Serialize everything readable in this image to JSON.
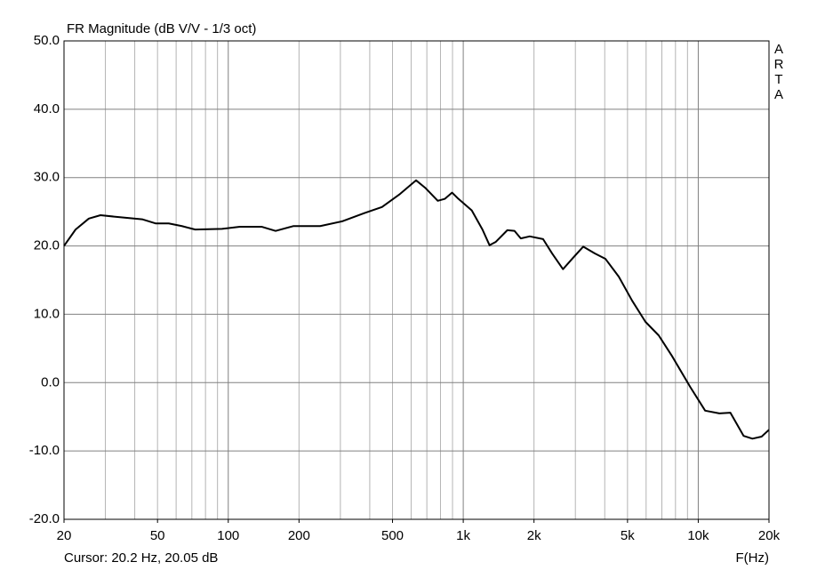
{
  "chart_data": {
    "type": "line",
    "title": "FR Magnitude (dB V/V - 1/3 oct)",
    "watermark": "ARTA",
    "cursor_text": "Cursor: 20.2 Hz, 20.05 dB",
    "x_label": "F(Hz)",
    "x_scale": "log",
    "grid": true,
    "color": "#000000",
    "x": [
      20,
      22.4,
      25.5,
      28.6,
      34.6,
      43.0,
      49.0,
      55.8,
      63.5,
      72.3,
      94.0,
      112,
      139,
      159,
      189,
      246,
      305,
      379,
      451,
      538,
      630,
      689,
      779,
      836,
      896,
      953,
      1087,
      1207,
      1294,
      1376,
      1540,
      1652,
      1757,
      1918,
      2186,
      2389,
      2657,
      2921,
      3241,
      3630,
      4030,
      4590,
      5230,
      5960,
      6790,
      7730,
      9230,
      10700,
      12300,
      13700,
      15600,
      17000,
      18600,
      20000
    ],
    "values": [
      20.0,
      22.4,
      24.0,
      24.5,
      24.2,
      23.9,
      23.3,
      23.3,
      22.9,
      22.4,
      22.5,
      22.8,
      22.8,
      22.2,
      22.9,
      22.9,
      23.6,
      24.8,
      25.7,
      27.6,
      29.6,
      28.5,
      26.6,
      26.9,
      27.8,
      26.9,
      25.2,
      22.4,
      20.1,
      20.6,
      22.3,
      22.2,
      21.1,
      21.4,
      21.0,
      18.9,
      16.6,
      18.2,
      19.9,
      18.9,
      18.1,
      15.5,
      12.0,
      8.9,
      6.9,
      3.9,
      -0.6,
      -4.1,
      -4.5,
      -4.4,
      -7.8,
      -8.2,
      -7.9,
      -6.9
    ],
    "xlim": [
      20,
      20000
    ],
    "xticks": [
      20,
      50,
      100,
      200,
      500,
      {
        "value": 1000,
        "label": "1k"
      },
      {
        "value": 2000,
        "label": "2k"
      },
      {
        "value": 5000,
        "label": "5k"
      },
      {
        "value": 10000,
        "label": "10k"
      },
      {
        "value": 20000,
        "label": "20k"
      }
    ],
    "ylim": [
      -20,
      50
    ],
    "yticks": [
      {
        "value": -20,
        "label": "-20.0"
      },
      {
        "value": -10,
        "label": "-10.0"
      },
      {
        "value": 0,
        "label": "0.0"
      },
      {
        "value": 10,
        "label": "10.0"
      },
      {
        "value": 20,
        "label": "20.0"
      },
      {
        "value": 30,
        "label": "30.0"
      },
      {
        "value": 40,
        "label": "40.0"
      },
      {
        "value": 50,
        "label": "50.0"
      }
    ]
  }
}
